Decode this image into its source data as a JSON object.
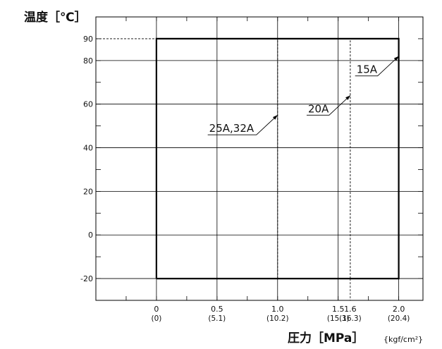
{
  "chart_data": {
    "type": "line",
    "ylabel": "温度［℃］",
    "xlabel": "圧力［MPa］",
    "xlabel_unit": "{kgf/cm²}",
    "x_ticks": [
      {
        "value": 0,
        "label": "0",
        "sublabel": "(0)"
      },
      {
        "value": 0.5,
        "label": "0.5",
        "sublabel": "(5.1)"
      },
      {
        "value": 1.0,
        "label": "1.0",
        "sublabel": "(10.2)"
      },
      {
        "value": 1.5,
        "label": "1.5",
        "sublabel": "(15.3)"
      },
      {
        "value": 1.6,
        "label": "1.6",
        "sublabel": "(16.3)"
      },
      {
        "value": 2.0,
        "label": "2.0",
        "sublabel": "(20.4)"
      }
    ],
    "y_ticks": [
      {
        "value": -20,
        "label": "-20"
      },
      {
        "value": 0,
        "label": "0"
      },
      {
        "value": 20,
        "label": "20"
      },
      {
        "value": 40,
        "label": "40"
      },
      {
        "value": 60,
        "label": "60"
      },
      {
        "value": 80,
        "label": "80"
      },
      {
        "value": 90,
        "label": "90"
      }
    ],
    "xlim": [
      -0.5,
      2.2
    ],
    "ylim": [
      -30,
      100
    ],
    "grid": true,
    "series": [
      {
        "name": "15A",
        "x": [
          0,
          2.0,
          2.0,
          0,
          0
        ],
        "y": [
          -20,
          -20,
          90,
          90,
          -20
        ],
        "style": "solid"
      },
      {
        "name": "20A",
        "x": [
          1.6,
          1.6
        ],
        "y": [
          -20,
          90
        ],
        "style": "dashed"
      },
      {
        "name": "25A,32A",
        "x": [
          1.0,
          1.0
        ],
        "y": [
          -20,
          90
        ],
        "style": "dashed"
      }
    ],
    "annotations": [
      {
        "text": "15A",
        "x": 2.0,
        "y": 82
      },
      {
        "text": "20A",
        "x": 1.6,
        "y": 64
      },
      {
        "text": "25A,32A",
        "x": 1.0,
        "y": 55
      }
    ]
  }
}
